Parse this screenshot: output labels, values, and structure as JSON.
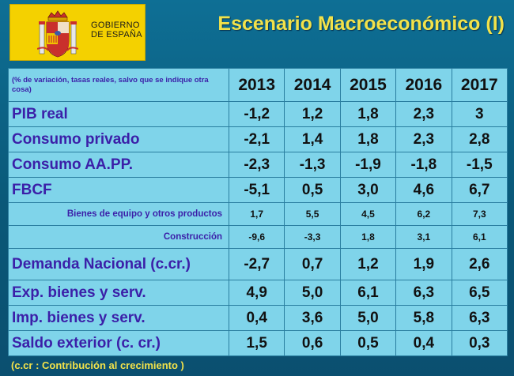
{
  "header": {
    "logo_line1": "GOBIERNO",
    "logo_line2": "DE ESPAÑA",
    "title": "Escenario Macroeconómico (I)"
  },
  "table": {
    "note": "(% de variación, tasas reales,  salvo que se indique otra cosa)",
    "years": [
      "2013",
      "2014",
      "2015",
      "2016",
      "2017"
    ],
    "rows": [
      {
        "label": "PIB real",
        "values": [
          "-1,2",
          "1,2",
          "1,8",
          "2,3",
          "3"
        ],
        "size": "big"
      },
      {
        "label": "Consumo privado",
        "values": [
          "-2,1",
          "1,4",
          "1,8",
          "2,3",
          "2,8"
        ],
        "size": "big"
      },
      {
        "label": "Consumo  AA.PP.",
        "values": [
          "-2,3",
          "-1,3",
          "-1,9",
          "-1,8",
          "-1,5"
        ],
        "size": "big"
      },
      {
        "label": "FBCF",
        "values": [
          "-5,1",
          "0,5",
          "3,0",
          "4,6",
          "6,7"
        ],
        "size": "big"
      },
      {
        "label": "Bienes de equipo y otros productos",
        "values": [
          "1,7",
          "5,5",
          "4,5",
          "6,2",
          "7,3"
        ],
        "size": "small"
      },
      {
        "label": "Construcción",
        "values": [
          "-9,6",
          "-3,3",
          "1,8",
          "3,1",
          "6,1"
        ],
        "size": "small"
      },
      {
        "label": "Demanda Nacional  (c.cr.)",
        "values": [
          "-2,7",
          "0,7",
          "1,2",
          "1,9",
          "2,6"
        ],
        "size": "big"
      },
      {
        "label": "Exp.  bienes y  serv.",
        "values": [
          "4,9",
          "5,0",
          "6,1",
          "6,3",
          "6,5"
        ],
        "size": "big"
      },
      {
        "label": "Imp.  bienes y serv.",
        "values": [
          "0,4",
          "3,6",
          "5,0",
          "5,8",
          "6,3"
        ],
        "size": "big"
      },
      {
        "label": "Saldo exterior  (c. cr.)",
        "values": [
          "1,5",
          "0,6",
          "0,5",
          "0,4",
          "0,3"
        ],
        "size": "big"
      }
    ]
  },
  "footnote": "(c.cr : Contribución al crecimiento )",
  "colors": {
    "background": "#0a5a7e",
    "table_fill": "#7fd4ea",
    "label_text": "#3b1fa8",
    "title_text": "#f2e24a",
    "logo_fill": "#f4d100"
  }
}
